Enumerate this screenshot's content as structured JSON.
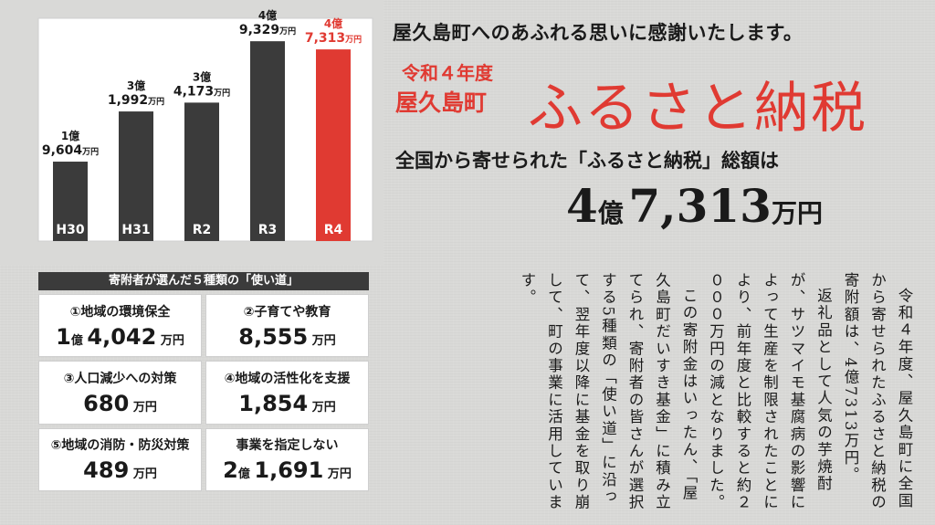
{
  "chart_data": {
    "type": "bar",
    "categories": [
      "H30",
      "H31",
      "R2",
      "R3",
      "R4"
    ],
    "values": [
      19604,
      31992,
      34173,
      49329,
      47313
    ],
    "unit_note": "万円",
    "data_labels": [
      {
        "oku": "1億",
        "man": "9,604",
        "unit": "万円"
      },
      {
        "oku": "3億",
        "man": "1,992",
        "unit": "万円"
      },
      {
        "oku": "3億",
        "man": "4,173",
        "unit": "万円"
      },
      {
        "oku": "4億",
        "man": "9,329",
        "unit": "万円"
      },
      {
        "oku": "4億",
        "man": "7,313",
        "unit": "万円"
      }
    ],
    "ylim": [
      0,
      55000
    ],
    "grid": false,
    "colors": {
      "default": "#3b3b3b",
      "highlight": "#e03a32",
      "highlight_index": 4
    },
    "title": "",
    "xlabel": "",
    "ylabel": ""
  },
  "header": {
    "headline": "屋久島町へのあふれる思いに感謝いたします。",
    "year": "令和４年度",
    "town": "屋久島町",
    "title": "ふるさと納税",
    "subhead": "全国から寄せられた「ふるさと納税」総額は",
    "total_oku_num": "4",
    "total_oku": "億",
    "total_man_num": "7,313",
    "total_unit": "万円"
  },
  "uses": {
    "title": "寄附者が選んだ５種類の「使い道」",
    "items": [
      {
        "label": "①地域の環境保全",
        "oku_num": "1",
        "oku": "億",
        "man": "4,042",
        "unit": "万円"
      },
      {
        "label": "②子育てや教育",
        "oku_num": "",
        "oku": "",
        "man": "8,555",
        "unit": "万円"
      },
      {
        "label": "③人口減少への対策",
        "oku_num": "",
        "oku": "",
        "man": "680",
        "unit": "万円"
      },
      {
        "label": "④地域の活性化を支援",
        "oku_num": "",
        "oku": "",
        "man": "1,854",
        "unit": "万円"
      },
      {
        "label": "⑤地域の消防・防災対策",
        "oku_num": "",
        "oku": "",
        "man": "489",
        "unit": "万円"
      },
      {
        "label": "事業を指定しない",
        "oku_num": "2",
        "oku": "億",
        "man": "1,691",
        "unit": "万円"
      }
    ]
  },
  "body": {
    "p1": "令和４年度、屋久島町に全国から寄せられたふるさと納税の寄附額は、4億7313万円。",
    "p2": "返礼品として人気の芋焼酎が、サツマイモ基腐病の影響によって生産を制限されたことにより、前年度と比較すると約２０００万円の減となりました。",
    "p3": "この寄附金はいったん、「屋久島町だいすき基金」に積み立てられ、寄附者の皆さんが選択する5種類の「使い道」に沿って、翌年度以降に基金を取り崩して、町の事業に活用しています。"
  }
}
